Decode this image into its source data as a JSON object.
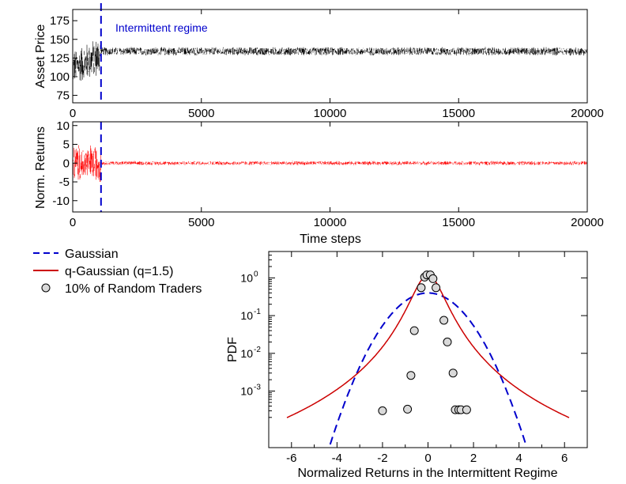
{
  "chart_data": [
    {
      "type": "line",
      "panel": "price",
      "ylabel": "Asset Price",
      "xlabel": "",
      "xlim": [
        0,
        20000
      ],
      "ylim": [
        65,
        190
      ],
      "x_ticks": [
        "0",
        "5000",
        "10000",
        "15000",
        "20000"
      ],
      "y_ticks": [
        "75",
        "100",
        "125",
        "150",
        "175"
      ],
      "annotation": "Intermittent regime",
      "regime_boundary": 1100,
      "series": [
        {
          "name": "Asset price",
          "color": "#000000",
          "segments": [
            {
              "x_start": 0,
              "x_end": 1100,
              "center_start": 112,
              "center_end": 128,
              "half_range_start": 25,
              "half_range_end": 30
            },
            {
              "x_start": 1100,
              "x_end": 20000,
              "center": 134,
              "half_range": 6
            }
          ]
        }
      ]
    },
    {
      "type": "line",
      "panel": "returns",
      "ylabel": "Norm. Returns",
      "xlabel": "Time steps",
      "xlim": [
        0,
        20000
      ],
      "ylim": [
        -13,
        11
      ],
      "x_ticks": [
        "0",
        "5000",
        "10000",
        "15000",
        "20000"
      ],
      "y_ticks": [
        "10",
        "5",
        "0",
        "-5",
        "-10"
      ],
      "regime_boundary": 1100,
      "series": [
        {
          "name": "Normalized returns",
          "color": "#ff0000",
          "segments": [
            {
              "x_start": 0,
              "x_end": 1100,
              "half_range": 5.5
            },
            {
              "x_start": 1100,
              "x_end": 20000,
              "half_range": 0.6
            }
          ]
        }
      ]
    },
    {
      "type": "scatter",
      "panel": "pdf",
      "xlabel": "Normalized Returns in the Intermittent Regime",
      "ylabel": "PDF",
      "yscale": "log",
      "xlim": [
        -7,
        7
      ],
      "ylim_log10": [
        -4.5,
        0.7
      ],
      "x_ticks": [
        "-6",
        "-4",
        "-2",
        "0",
        "2",
        "4",
        "6"
      ],
      "y_ticks": [
        {
          "mant": "10",
          "exp": "0",
          "value": 0
        },
        {
          "mant": "10",
          "exp": "-1",
          "value": -1
        },
        {
          "mant": "10",
          "exp": "-2",
          "value": -2
        },
        {
          "mant": "10",
          "exp": "-3",
          "value": -3
        }
      ],
      "series": [
        {
          "name": "Gaussian",
          "color": "#0000cc",
          "style": "dashed",
          "sigma": 1,
          "x_range": [
            -4.4,
            4.4
          ]
        },
        {
          "name": "q-Gaussian (q=1.5)",
          "color": "#cc0000",
          "style": "solid",
          "peak": 1.2,
          "beta": 4.0,
          "x_range": [
            -6.2,
            6.2
          ]
        },
        {
          "name": "10% of Random Traders",
          "marker": "circle",
          "fill": "#d9d9d9",
          "x": [
            -2.0,
            -0.9,
            -0.75,
            -0.6,
            -0.3,
            -0.15,
            -0.05,
            0.1,
            0.22,
            0.35,
            0.7,
            0.85,
            1.1,
            1.2,
            1.35,
            1.45,
            1.7
          ],
          "y": [
            0.0003,
            0.00033,
            0.0026,
            0.04,
            0.55,
            1.05,
            1.2,
            1.2,
            0.95,
            0.55,
            0.075,
            0.02,
            0.003,
            0.00032,
            0.00032,
            0.00032,
            0.00032
          ]
        }
      ]
    }
  ]
}
